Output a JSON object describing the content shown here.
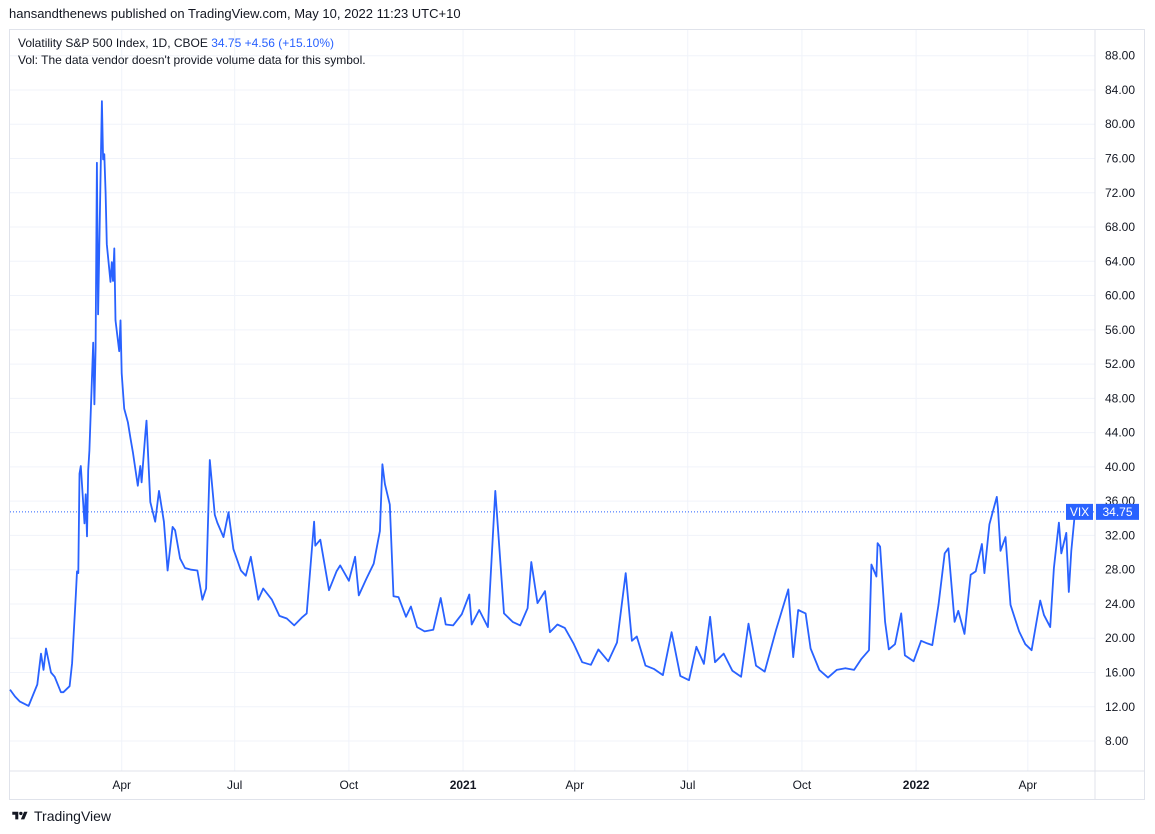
{
  "header": {
    "publisher_line": "hansandthenews published on TradingView.com, May 10, 2022 11:23 UTC+10"
  },
  "legend": {
    "title": "Volatility S&P 500 Index, 1D, CBOE",
    "last": "34.75",
    "change": "+4.56 (+15.10%)",
    "vol_note": "Vol: The data vendor doesn't provide volume data for this symbol."
  },
  "footer": {
    "brand": "TradingView"
  },
  "colors": {
    "line": "#2962ff",
    "grid": "#f0f3fa",
    "axis_text": "#131722",
    "label_bg": "#2962ff"
  },
  "chart_data": {
    "type": "line",
    "title": "Volatility S&P 500 Index, 1D, CBOE",
    "series": [
      {
        "name": "VIX"
      }
    ],
    "last_value_label": {
      "name": "VIX",
      "value": "34.75"
    },
    "y_ticks": [
      "8.00",
      "12.00",
      "16.00",
      "20.00",
      "24.00",
      "28.00",
      "32.00",
      "36.00",
      "40.00",
      "44.00",
      "48.00",
      "52.00",
      "56.00",
      "60.00",
      "64.00",
      "68.00",
      "72.00",
      "76.00",
      "80.00",
      "84.00",
      "88.00"
    ],
    "x_ticks": [
      "Apr",
      "Jul",
      "Oct",
      "2021",
      "Apr",
      "Jul",
      "Oct",
      "2022",
      "Apr"
    ],
    "ylim": [
      4.5,
      91
    ],
    "grid": true,
    "data": [
      [
        "2020-01-02",
        14.0
      ],
      [
        "2020-01-06",
        13.2
      ],
      [
        "2020-01-10",
        12.6
      ],
      [
        "2020-01-17",
        12.1
      ],
      [
        "2020-01-24",
        14.6
      ],
      [
        "2020-01-27",
        18.2
      ],
      [
        "2020-01-29",
        16.3
      ],
      [
        "2020-01-31",
        18.8
      ],
      [
        "2020-02-04",
        16.0
      ],
      [
        "2020-02-07",
        15.5
      ],
      [
        "2020-02-12",
        13.7
      ],
      [
        "2020-02-14",
        13.7
      ],
      [
        "2020-02-19",
        14.4
      ],
      [
        "2020-02-21",
        17.1
      ],
      [
        "2020-02-24",
        25.0
      ],
      [
        "2020-02-25",
        27.8
      ],
      [
        "2020-02-26",
        27.6
      ],
      [
        "2020-02-27",
        39.2
      ],
      [
        "2020-02-28",
        40.1
      ],
      [
        "2020-03-02",
        33.4
      ],
      [
        "2020-03-03",
        36.8
      ],
      [
        "2020-03-04",
        31.9
      ],
      [
        "2020-03-05",
        39.6
      ],
      [
        "2020-03-06",
        41.9
      ],
      [
        "2020-03-09",
        54.5
      ],
      [
        "2020-03-10",
        47.3
      ],
      [
        "2020-03-11",
        53.9
      ],
      [
        "2020-03-12",
        75.5
      ],
      [
        "2020-03-13",
        57.8
      ],
      [
        "2020-03-16",
        82.7
      ],
      [
        "2020-03-17",
        75.9
      ],
      [
        "2020-03-18",
        76.5
      ],
      [
        "2020-03-19",
        72.0
      ],
      [
        "2020-03-20",
        66.0
      ],
      [
        "2020-03-23",
        61.6
      ],
      [
        "2020-03-24",
        63.9
      ],
      [
        "2020-03-25",
        61.7
      ],
      [
        "2020-03-26",
        65.5
      ],
      [
        "2020-03-27",
        57.1
      ],
      [
        "2020-03-30",
        53.5
      ],
      [
        "2020-03-31",
        57.1
      ],
      [
        "2020-04-01",
        50.9
      ],
      [
        "2020-04-03",
        46.8
      ],
      [
        "2020-04-06",
        45.2
      ],
      [
        "2020-04-08",
        43.4
      ],
      [
        "2020-04-10",
        41.7
      ],
      [
        "2020-04-14",
        37.8
      ],
      [
        "2020-04-16",
        40.1
      ],
      [
        "2020-04-17",
        38.2
      ],
      [
        "2020-04-20",
        43.8
      ],
      [
        "2020-04-21",
        45.4
      ],
      [
        "2020-04-24",
        35.9
      ],
      [
        "2020-04-28",
        33.6
      ],
      [
        "2020-05-01",
        37.2
      ],
      [
        "2020-05-05",
        33.6
      ],
      [
        "2020-05-08",
        27.9
      ],
      [
        "2020-05-12",
        33.0
      ],
      [
        "2020-05-14",
        32.6
      ],
      [
        "2020-05-18",
        29.3
      ],
      [
        "2020-05-22",
        28.2
      ],
      [
        "2020-05-27",
        28.0
      ],
      [
        "2020-06-01",
        27.9
      ],
      [
        "2020-06-05",
        24.5
      ],
      [
        "2020-06-08",
        25.8
      ],
      [
        "2020-06-11",
        40.8
      ],
      [
        "2020-06-15",
        34.4
      ],
      [
        "2020-06-17",
        33.5
      ],
      [
        "2020-06-22",
        31.8
      ],
      [
        "2020-06-26",
        34.7
      ],
      [
        "2020-06-30",
        30.4
      ],
      [
        "2020-07-06",
        27.9
      ],
      [
        "2020-07-10",
        27.3
      ],
      [
        "2020-07-14",
        29.5
      ],
      [
        "2020-07-20",
        24.5
      ],
      [
        "2020-07-24",
        25.8
      ],
      [
        "2020-07-31",
        24.5
      ],
      [
        "2020-08-06",
        22.6
      ],
      [
        "2020-08-12",
        22.3
      ],
      [
        "2020-08-18",
        21.5
      ],
      [
        "2020-08-24",
        22.4
      ],
      [
        "2020-08-28",
        22.9
      ],
      [
        "2020-09-03",
        33.6
      ],
      [
        "2020-09-04",
        30.8
      ],
      [
        "2020-09-08",
        31.5
      ],
      [
        "2020-09-15",
        25.6
      ],
      [
        "2020-09-21",
        27.8
      ],
      [
        "2020-09-24",
        28.5
      ],
      [
        "2020-10-01",
        26.7
      ],
      [
        "2020-10-06",
        29.5
      ],
      [
        "2020-10-09",
        25.0
      ],
      [
        "2020-10-15",
        26.9
      ],
      [
        "2020-10-21",
        28.7
      ],
      [
        "2020-10-26",
        32.5
      ],
      [
        "2020-10-28",
        40.3
      ],
      [
        "2020-10-30",
        38.0
      ],
      [
        "2020-11-03",
        35.6
      ],
      [
        "2020-11-06",
        24.9
      ],
      [
        "2020-11-10",
        24.8
      ],
      [
        "2020-11-16",
        22.5
      ],
      [
        "2020-11-20",
        23.7
      ],
      [
        "2020-11-25",
        21.3
      ],
      [
        "2020-12-01",
        20.8
      ],
      [
        "2020-12-08",
        21.0
      ],
      [
        "2020-12-14",
        24.7
      ],
      [
        "2020-12-18",
        21.6
      ],
      [
        "2020-12-24",
        21.5
      ],
      [
        "2020-12-31",
        22.8
      ],
      [
        "2021-01-06",
        25.1
      ],
      [
        "2021-01-08",
        21.6
      ],
      [
        "2021-01-14",
        23.3
      ],
      [
        "2021-01-21",
        21.3
      ],
      [
        "2021-01-27",
        37.2
      ],
      [
        "2021-01-29",
        33.1
      ],
      [
        "2021-02-03",
        22.9
      ],
      [
        "2021-02-10",
        21.9
      ],
      [
        "2021-02-16",
        21.5
      ],
      [
        "2021-02-22",
        23.5
      ],
      [
        "2021-02-25",
        28.9
      ],
      [
        "2021-03-02",
        24.1
      ],
      [
        "2021-03-08",
        25.5
      ],
      [
        "2021-03-12",
        20.7
      ],
      [
        "2021-03-18",
        21.6
      ],
      [
        "2021-03-24",
        21.2
      ],
      [
        "2021-03-31",
        19.4
      ],
      [
        "2021-04-07",
        17.2
      ],
      [
        "2021-04-14",
        16.9
      ],
      [
        "2021-04-20",
        18.7
      ],
      [
        "2021-04-28",
        17.3
      ],
      [
        "2021-05-05",
        19.5
      ],
      [
        "2021-05-12",
        27.6
      ],
      [
        "2021-05-17",
        19.7
      ],
      [
        "2021-05-21",
        20.2
      ],
      [
        "2021-05-28",
        16.8
      ],
      [
        "2021-06-04",
        16.4
      ],
      [
        "2021-06-11",
        15.7
      ],
      [
        "2021-06-18",
        20.7
      ],
      [
        "2021-06-25",
        15.6
      ],
      [
        "2021-07-02",
        15.1
      ],
      [
        "2021-07-08",
        19.0
      ],
      [
        "2021-07-14",
        17.0
      ],
      [
        "2021-07-19",
        22.5
      ],
      [
        "2021-07-23",
        17.2
      ],
      [
        "2021-07-30",
        18.2
      ],
      [
        "2021-08-06",
        16.2
      ],
      [
        "2021-08-13",
        15.5
      ],
      [
        "2021-08-19",
        21.7
      ],
      [
        "2021-08-25",
        16.8
      ],
      [
        "2021-09-01",
        16.1
      ],
      [
        "2021-09-10",
        20.9
      ],
      [
        "2021-09-20",
        25.7
      ],
      [
        "2021-09-24",
        17.8
      ],
      [
        "2021-09-28",
        23.3
      ],
      [
        "2021-10-04",
        22.9
      ],
      [
        "2021-10-08",
        18.8
      ],
      [
        "2021-10-15",
        16.3
      ],
      [
        "2021-10-22",
        15.4
      ],
      [
        "2021-10-29",
        16.3
      ],
      [
        "2021-11-05",
        16.5
      ],
      [
        "2021-11-12",
        16.3
      ],
      [
        "2021-11-18",
        17.6
      ],
      [
        "2021-11-24",
        18.6
      ],
      [
        "2021-11-26",
        28.6
      ],
      [
        "2021-11-30",
        27.2
      ],
      [
        "2021-12-01",
        31.1
      ],
      [
        "2021-12-03",
        30.7
      ],
      [
        "2021-12-07",
        21.9
      ],
      [
        "2021-12-10",
        18.7
      ],
      [
        "2021-12-15",
        19.3
      ],
      [
        "2021-12-20",
        22.9
      ],
      [
        "2021-12-23",
        18.0
      ],
      [
        "2021-12-30",
        17.3
      ],
      [
        "2022-01-05",
        19.7
      ],
      [
        "2022-01-10",
        19.4
      ],
      [
        "2022-01-14",
        19.2
      ],
      [
        "2022-01-19",
        23.9
      ],
      [
        "2022-01-24",
        29.9
      ],
      [
        "2022-01-27",
        30.5
      ],
      [
        "2022-02-01",
        21.9
      ],
      [
        "2022-02-04",
        23.2
      ],
      [
        "2022-02-09",
        20.5
      ],
      [
        "2022-02-14",
        27.4
      ],
      [
        "2022-02-18",
        27.8
      ],
      [
        "2022-02-23",
        31.0
      ],
      [
        "2022-02-25",
        27.6
      ],
      [
        "2022-03-01",
        33.3
      ],
      [
        "2022-03-07",
        36.5
      ],
      [
        "2022-03-08",
        35.1
      ],
      [
        "2022-03-10",
        30.2
      ],
      [
        "2022-03-14",
        31.8
      ],
      [
        "2022-03-18",
        23.9
      ],
      [
        "2022-03-25",
        20.8
      ],
      [
        "2022-03-30",
        19.3
      ],
      [
        "2022-04-04",
        18.6
      ],
      [
        "2022-04-11",
        24.4
      ],
      [
        "2022-04-14",
        22.7
      ],
      [
        "2022-04-19",
        21.3
      ],
      [
        "2022-04-22",
        28.2
      ],
      [
        "2022-04-26",
        33.5
      ],
      [
        "2022-04-28",
        29.9
      ],
      [
        "2022-05-02",
        32.3
      ],
      [
        "2022-05-04",
        25.4
      ],
      [
        "2022-05-06",
        30.2
      ],
      [
        "2022-05-09",
        34.75
      ]
    ]
  }
}
